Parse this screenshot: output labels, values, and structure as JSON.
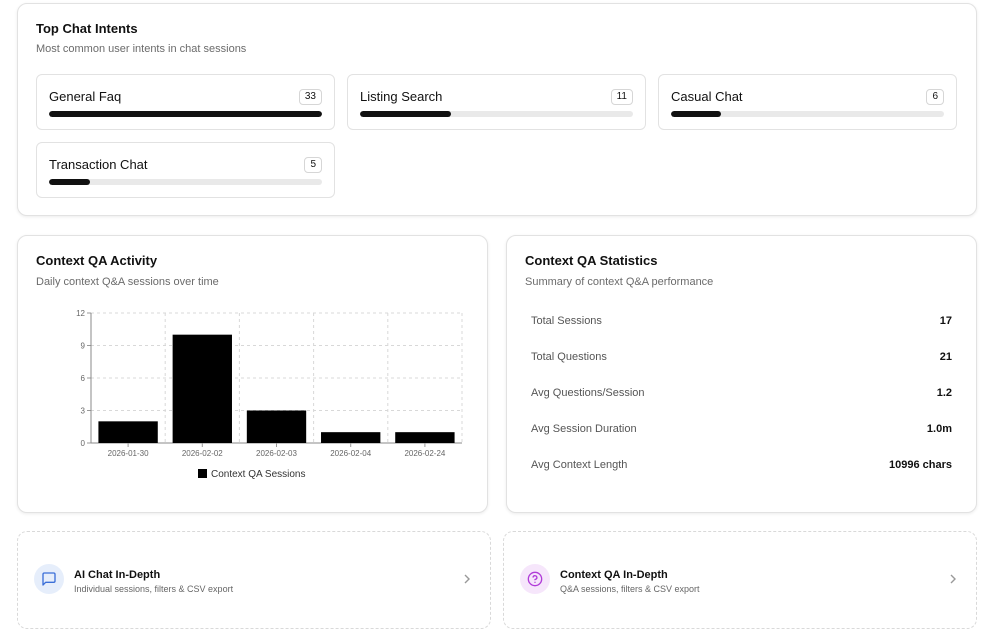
{
  "intents": {
    "title": "Top Chat Intents",
    "subtitle": "Most common user intents in chat sessions",
    "max": 33,
    "items": [
      {
        "label": "General Faq",
        "count": "33",
        "value": 33
      },
      {
        "label": "Listing Search",
        "count": "11",
        "value": 11
      },
      {
        "label": "Casual Chat",
        "count": "6",
        "value": 6
      },
      {
        "label": "Transaction Chat",
        "count": "5",
        "value": 5
      }
    ]
  },
  "activity": {
    "title": "Context QA Activity",
    "subtitle": "Daily context Q&A sessions over time"
  },
  "chart_data": {
    "type": "bar",
    "categories": [
      "2026-01-30",
      "2026-02-02",
      "2026-02-03",
      "2026-02-04",
      "2026-02-24"
    ],
    "series": [
      {
        "name": "Context QA Sessions",
        "values": [
          2,
          10,
          3,
          1,
          1
        ],
        "color": "#000000"
      }
    ],
    "ylim": [
      0,
      12
    ],
    "yticks": [
      "0",
      "3",
      "6",
      "9",
      "12"
    ],
    "grid": true,
    "legend": "bottom-center"
  },
  "stats": {
    "title": "Context QA Statistics",
    "subtitle": "Summary of context Q&A performance",
    "rows": [
      {
        "label": "Total Sessions",
        "value": "17"
      },
      {
        "label": "Total Questions",
        "value": "21"
      },
      {
        "label": "Avg Questions/Session",
        "value": "1.2"
      },
      {
        "label": "Avg Session Duration",
        "value": "1.0m"
      },
      {
        "label": "Avg Context Length",
        "value": "10996 chars"
      }
    ]
  },
  "nav": {
    "ai_chat": {
      "title": "AI Chat In-Depth",
      "subtitle": "Individual sessions, filters & CSV export",
      "icon": "message-square-icon",
      "accent": "#3b6fd8",
      "bg": "#e6eefb"
    },
    "context_qa": {
      "title": "Context QA In-Depth",
      "subtitle": "Q&A sessions, filters & CSV export",
      "icon": "help-circle-icon",
      "accent": "#b03bd8",
      "bg": "#f6e6fb"
    }
  }
}
